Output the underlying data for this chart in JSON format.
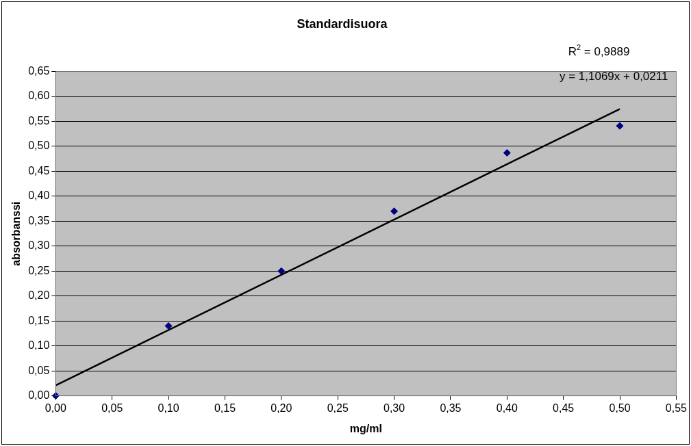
{
  "chart_data": {
    "type": "scatter",
    "title": "Standardisuora",
    "xlabel": "mg/ml",
    "ylabel": "absorbanssi",
    "x": [
      0,
      0.1,
      0.2,
      0.3,
      0.4,
      0.5
    ],
    "series": [
      {
        "color": "#000080",
        "marker": "diamond",
        "values": [
          0,
          0.14,
          0.25,
          0.37,
          0.487,
          0.541
        ]
      },
      {
        "type": "line",
        "color": "#000000",
        "marker": "none",
        "line_style": "solid",
        "x": [
          0,
          0.5
        ],
        "values": [
          0.021,
          0.575
        ]
      }
    ],
    "xlim": [
      0,
      0.55
    ],
    "xticks": [
      {
        "value": 0,
        "label": "0,00"
      },
      {
        "value": 0.05,
        "label": "0,05"
      },
      {
        "value": 0.1,
        "label": "0,10"
      },
      {
        "value": 0.15,
        "label": "0,15"
      },
      {
        "value": 0.2,
        "label": "0,20"
      },
      {
        "value": 0.25,
        "label": "0,25"
      },
      {
        "value": 0.3,
        "label": "0,30"
      },
      {
        "value": 0.35,
        "label": "0,35"
      },
      {
        "value": 0.4,
        "label": "0,40"
      },
      {
        "value": 0.45,
        "label": "0,45"
      },
      {
        "value": 0.5,
        "label": "0,50"
      },
      {
        "value": 0.55,
        "label": "0,55"
      }
    ],
    "ylim": [
      0,
      0.65
    ],
    "yticks": [
      {
        "value": 0,
        "label": "0,00"
      },
      {
        "value": 0.05,
        "label": "0,05"
      },
      {
        "value": 0.1,
        "label": "0,10"
      },
      {
        "value": 0.15,
        "label": "0,15"
      },
      {
        "value": 0.2,
        "label": "0,20"
      },
      {
        "value": 0.25,
        "label": "0,25"
      },
      {
        "value": 0.3,
        "label": "0,30"
      },
      {
        "value": 0.35,
        "label": "0,35"
      },
      {
        "value": 0.4,
        "label": "0,40"
      },
      {
        "value": 0.45,
        "label": "0,45"
      },
      {
        "value": 0.5,
        "label": "0,50"
      },
      {
        "value": 0.55,
        "label": "0,55"
      },
      {
        "value": 0.6,
        "label": "0,60"
      },
      {
        "value": 0.65,
        "label": "0,65"
      }
    ],
    "grid": "y",
    "legend": false,
    "annotations": [
      "R$^{2}$ = 0,9889",
      "y = 1,1069x + 0,0211"
    ]
  }
}
